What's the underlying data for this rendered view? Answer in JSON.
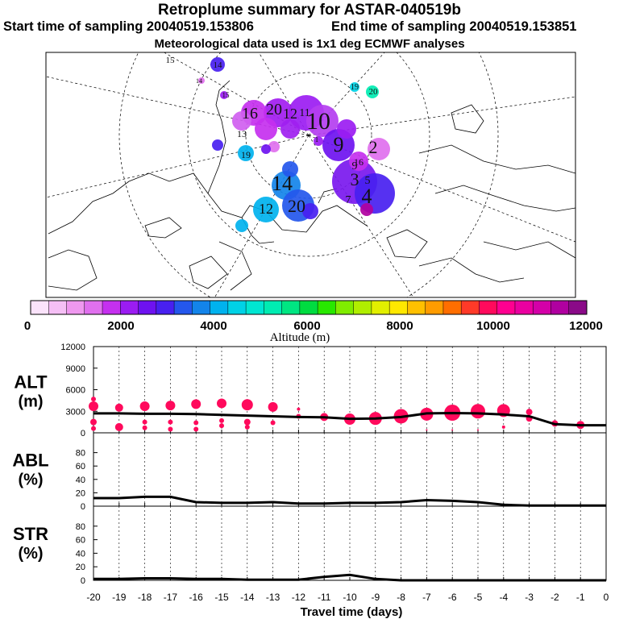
{
  "header": {
    "title": "Retroplume summary for ASTAR-040519b",
    "start": "Start time of sampling 20040519.153806",
    "end": "End time of sampling 20040519.153851",
    "met": "Meteorological data used is 1x1 deg ECMWF analyses"
  },
  "colorbar": {
    "label": "Altitude (m)",
    "ticks": [
      "0",
      "2000",
      "4000",
      "6000",
      "8000",
      "10000",
      "12000"
    ],
    "colors": [
      "#fbe3fb",
      "#f5bff5",
      "#ef98ef",
      "#e070ee",
      "#c530ef",
      "#9b1cf2",
      "#6e12f0",
      "#4820f0",
      "#2457ec",
      "#1384ea",
      "#00b2ee",
      "#00d2e6",
      "#00e6d2",
      "#00ecb2",
      "#00e682",
      "#00dc40",
      "#28e800",
      "#80ec00",
      "#b0ee00",
      "#e2ef00",
      "#ffe800",
      "#ffc000",
      "#ff9c00",
      "#ff6e00",
      "#ff3a28",
      "#ff0a5c",
      "#ff0090",
      "#ea00a0",
      "#d400a8",
      "#b000a0",
      "#8a0a88"
    ]
  },
  "map": {
    "labels": [
      {
        "t": "15"
      },
      {
        "t": "14"
      },
      {
        "t": "14"
      },
      {
        "t": "19"
      },
      {
        "t": "20"
      },
      {
        "t": "15"
      },
      {
        "t": "16"
      },
      {
        "t": "20"
      },
      {
        "t": "12"
      },
      {
        "t": "10"
      },
      {
        "t": "11"
      },
      {
        "t": "13"
      },
      {
        "t": "1"
      },
      {
        "t": "9"
      },
      {
        "t": "2"
      },
      {
        "t": "16"
      },
      {
        "t": "19"
      },
      {
        "t": "3"
      },
      {
        "t": "5"
      },
      {
        "t": "4"
      },
      {
        "t": "7"
      },
      {
        "t": "14"
      },
      {
        "t": "12"
      },
      {
        "t": "20"
      },
      {
        "t": "9"
      }
    ]
  },
  "panels": [
    {
      "label": "ALT",
      "unit": "(m)",
      "yticks": [
        "12000",
        "9000",
        "6000",
        "3000",
        "0"
      ]
    },
    {
      "label": "ABL",
      "unit": "(%)",
      "yticks": [
        "80",
        "60",
        "40",
        "20",
        "0"
      ]
    },
    {
      "label": "STR",
      "unit": "(%)",
      "yticks": [
        "80",
        "60",
        "40",
        "20",
        "0"
      ]
    }
  ],
  "xaxis": {
    "label": "Travel time (days)",
    "ticks": [
      "-20",
      "-19",
      "-18",
      "-17",
      "-16",
      "-15",
      "-14",
      "-13",
      "-12",
      "-11",
      "-10",
      "-9",
      "-8",
      "-7",
      "-6",
      "-5",
      "-4",
      "-3",
      "-2",
      "-1",
      "0"
    ]
  },
  "chart_data": [
    {
      "type": "line",
      "title": "ALT",
      "ylabel": "ALT (m)",
      "ylim": [
        0,
        12000
      ],
      "x": [
        -20,
        -19,
        -18,
        -17,
        -16,
        -15,
        -14,
        -13,
        -12,
        -11,
        -10,
        -9,
        -8,
        -7,
        -6,
        -5,
        -4,
        -3,
        -2,
        -1,
        0
      ],
      "values": [
        2700,
        2700,
        2650,
        2650,
        2600,
        2500,
        2400,
        2300,
        2200,
        2150,
        1950,
        2000,
        2200,
        2700,
        2750,
        2700,
        2550,
        2300,
        1200,
        1050,
        1050
      ],
      "clusters": [
        {
          "x": -20,
          "alt": 4700,
          "s": 3
        },
        {
          "x": -20,
          "alt": 3700,
          "s": 6
        },
        {
          "x": -20,
          "alt": 1500,
          "s": 4
        },
        {
          "x": -20,
          "alt": 600,
          "s": 3
        },
        {
          "x": -19,
          "alt": 3500,
          "s": 5
        },
        {
          "x": -19,
          "alt": 800,
          "s": 5
        },
        {
          "x": -18,
          "alt": 3700,
          "s": 6
        },
        {
          "x": -18,
          "alt": 1500,
          "s": 3
        },
        {
          "x": -18,
          "alt": 700,
          "s": 3
        },
        {
          "x": -17,
          "alt": 3800,
          "s": 6
        },
        {
          "x": -17,
          "alt": 1500,
          "s": 3
        },
        {
          "x": -17,
          "alt": 500,
          "s": 3
        },
        {
          "x": -16,
          "alt": 4000,
          "s": 6
        },
        {
          "x": -16,
          "alt": 1400,
          "s": 3
        },
        {
          "x": -16,
          "alt": 500,
          "s": 3
        },
        {
          "x": -15,
          "alt": 4100,
          "s": 6
        },
        {
          "x": -15,
          "alt": 1700,
          "s": 3
        },
        {
          "x": -15,
          "alt": 1000,
          "s": 3
        },
        {
          "x": -14,
          "alt": 3900,
          "s": 7
        },
        {
          "x": -14,
          "alt": 1500,
          "s": 4
        },
        {
          "x": -14,
          "alt": 800,
          "s": 3
        },
        {
          "x": -13,
          "alt": 3600,
          "s": 6
        },
        {
          "x": -13,
          "alt": 1400,
          "s": 3
        },
        {
          "x": -12,
          "alt": 3300,
          "s": 2
        },
        {
          "x": -12,
          "alt": 2300,
          "s": 3
        },
        {
          "x": -11,
          "alt": 2200,
          "s": 5
        },
        {
          "x": -10,
          "alt": 1900,
          "s": 7
        },
        {
          "x": -9,
          "alt": 2000,
          "s": 8
        },
        {
          "x": -8,
          "alt": 2300,
          "s": 9
        },
        {
          "x": -7,
          "alt": 2600,
          "s": 8
        },
        {
          "x": -7,
          "alt": 400,
          "s": 1
        },
        {
          "x": -6,
          "alt": 2800,
          "s": 10
        },
        {
          "x": -6,
          "alt": 400,
          "s": 1
        },
        {
          "x": -5,
          "alt": 3000,
          "s": 9
        },
        {
          "x": -5,
          "alt": 400,
          "s": 1
        },
        {
          "x": -4,
          "alt": 3100,
          "s": 8
        },
        {
          "x": -4,
          "alt": 800,
          "s": 2
        },
        {
          "x": -3,
          "alt": 2900,
          "s": 4
        },
        {
          "x": -3,
          "alt": 2000,
          "s": 4
        },
        {
          "x": -2,
          "alt": 1300,
          "s": 4
        },
        {
          "x": -1,
          "alt": 1100,
          "s": 5
        }
      ]
    },
    {
      "type": "line",
      "title": "ABL",
      "ylabel": "ABL (%)",
      "ylim": [
        0,
        100
      ],
      "x": [
        -20,
        -19,
        -18,
        -17,
        -16,
        -15,
        -14,
        -13,
        -12,
        -11,
        -10,
        -9,
        -8,
        -7,
        -6,
        -5,
        -4,
        -3,
        -2,
        -1,
        0
      ],
      "values": [
        12,
        12,
        14,
        14,
        6,
        5,
        5,
        6,
        4,
        4,
        5,
        5,
        6,
        9,
        8,
        6,
        2,
        1,
        1,
        1,
        1
      ]
    },
    {
      "type": "line",
      "title": "STR",
      "ylabel": "STR (%)",
      "ylim": [
        0,
        100
      ],
      "x": [
        -20,
        -19,
        -18,
        -17,
        -16,
        -15,
        -14,
        -13,
        -12,
        -11,
        -10,
        -9,
        -8,
        -7,
        -6,
        -5,
        -4,
        -3,
        -2,
        -1,
        0
      ],
      "values": [
        2,
        2,
        3,
        3,
        2,
        2,
        1,
        1,
        1,
        5,
        8,
        2,
        0,
        0,
        0,
        0,
        0,
        0,
        0,
        0,
        0
      ]
    }
  ]
}
